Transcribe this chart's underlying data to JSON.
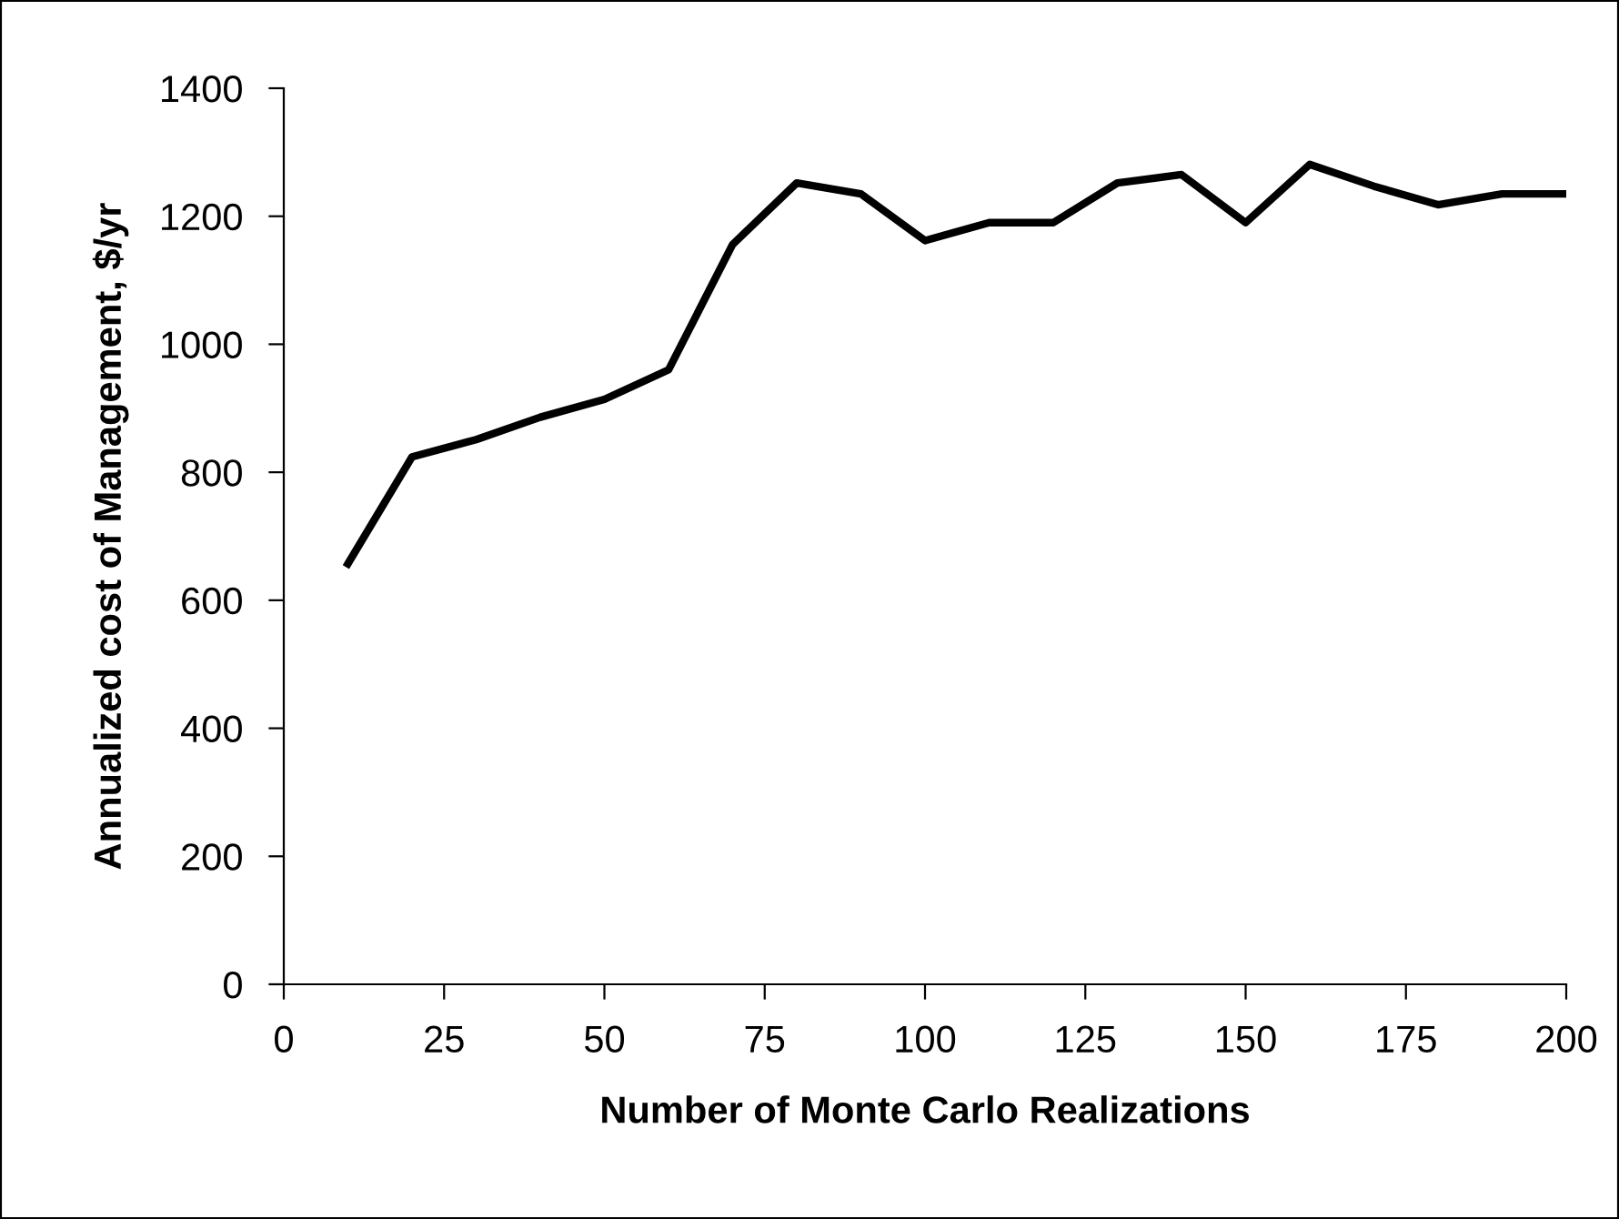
{
  "chart_data": {
    "type": "line",
    "xlabel": "Number of Monte Carlo Realizations",
    "ylabel": "Annualized cost of Management, $/yr",
    "x": [
      10,
      20,
      30,
      40,
      50,
      60,
      70,
      80,
      90,
      100,
      110,
      120,
      130,
      140,
      150,
      160,
      170,
      180,
      190,
      200
    ],
    "series": [
      {
        "color": "#000000",
        "values": [
          657,
          824,
          851,
          886,
          914,
          960,
          1156,
          1252,
          1235,
          1162,
          1190,
          1190,
          1252,
          1265,
          1190,
          1281,
          1247,
          1218,
          1235,
          1235
        ]
      }
    ],
    "xlim": [
      0,
      200
    ],
    "xticks": [
      0,
      25,
      50,
      75,
      100,
      125,
      150,
      175,
      200
    ],
    "ylim": [
      0,
      1400
    ],
    "yticks": [
      0,
      200,
      400,
      600,
      800,
      1000,
      1200,
      1400
    ],
    "grid": false,
    "legend": false,
    "marker": "none",
    "line_style": "solid"
  }
}
